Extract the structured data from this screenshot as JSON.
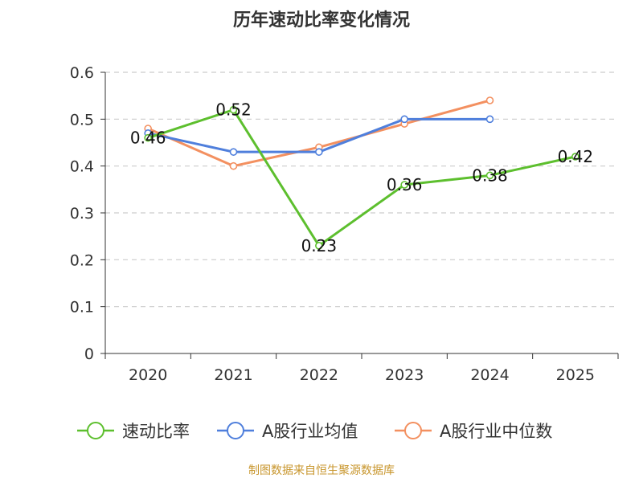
{
  "chart_data": {
    "type": "line",
    "title": "历年速动比率变化情况",
    "categories": [
      "2020",
      "2021",
      "2022",
      "2023",
      "2024",
      "2025"
    ],
    "ylim": [
      0,
      0.6
    ],
    "yticks": [
      0,
      0.1,
      0.2,
      0.3,
      0.4,
      0.5,
      0.6
    ],
    "ytick_labels": [
      "0",
      "0.1",
      "0.2",
      "0.3",
      "0.4",
      "0.5",
      "0.6"
    ],
    "grid": true,
    "legend_position": "bottom-center",
    "series": [
      {
        "name": "速动比率",
        "color": "#5dbf2e",
        "values": [
          0.46,
          0.52,
          0.23,
          0.36,
          0.38,
          0.42
        ],
        "data_labels": [
          "0.46",
          "0.52",
          "0.23",
          "0.36",
          "0.38",
          "0.42"
        ]
      },
      {
        "name": "A股行业均值",
        "color": "#4f7fdc",
        "values": [
          0.47,
          0.43,
          0.43,
          0.5,
          0.5,
          null
        ]
      },
      {
        "name": "A股行业中位数",
        "color": "#f39060",
        "values": [
          0.48,
          0.4,
          0.44,
          0.49,
          0.54,
          null
        ]
      }
    ]
  },
  "footer": {
    "source_text": "制图数据来自恒生聚源数据库",
    "source_color": "#c8962d"
  }
}
